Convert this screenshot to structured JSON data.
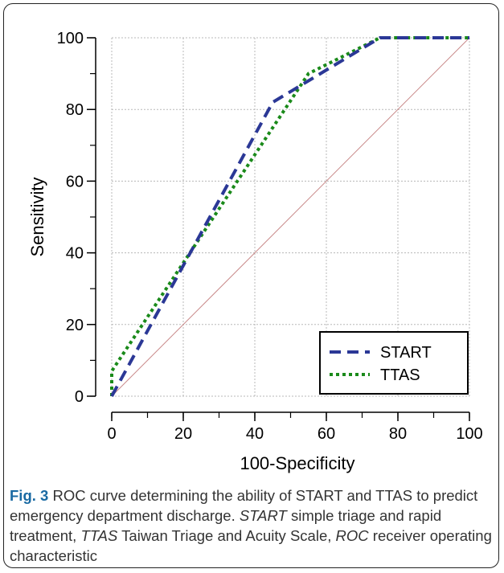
{
  "chart_data": {
    "type": "line",
    "xlabel": "100-Specificity",
    "ylabel": "Sensitivity",
    "xlim": [
      0,
      100
    ],
    "ylim": [
      0,
      100
    ],
    "x_ticks": [
      0,
      20,
      40,
      60,
      80,
      100
    ],
    "y_ticks": [
      0,
      20,
      40,
      60,
      80,
      100
    ],
    "grid": true,
    "legend_position": "bottom-right",
    "series": [
      {
        "name": "START",
        "color": "#2b3896",
        "style": "dashed",
        "points": [
          [
            0,
            0
          ],
          [
            45,
            82
          ],
          [
            75,
            100
          ],
          [
            100,
            100
          ]
        ]
      },
      {
        "name": "TTAS",
        "color": "#1a8a1a",
        "style": "dotted",
        "points": [
          [
            0,
            0
          ],
          [
            0,
            7
          ],
          [
            55,
            90
          ],
          [
            75,
            100
          ],
          [
            100,
            100
          ]
        ]
      }
    ],
    "reference_line": {
      "color": "#c98a8a",
      "points": [
        [
          0,
          0
        ],
        [
          100,
          100
        ]
      ]
    }
  },
  "caption": {
    "label": "Fig. 3",
    "t1": " ROC curve determining the ability of START and TTAS to predict emergency department discharge. ",
    "i1": "START",
    "t2": " simple triage and rapid treatment, ",
    "i2": "TTAS",
    "t3": " Taiwan Triage and Acuity Scale, ",
    "i3": "ROC",
    "t4": " receiver operating characteristic"
  }
}
